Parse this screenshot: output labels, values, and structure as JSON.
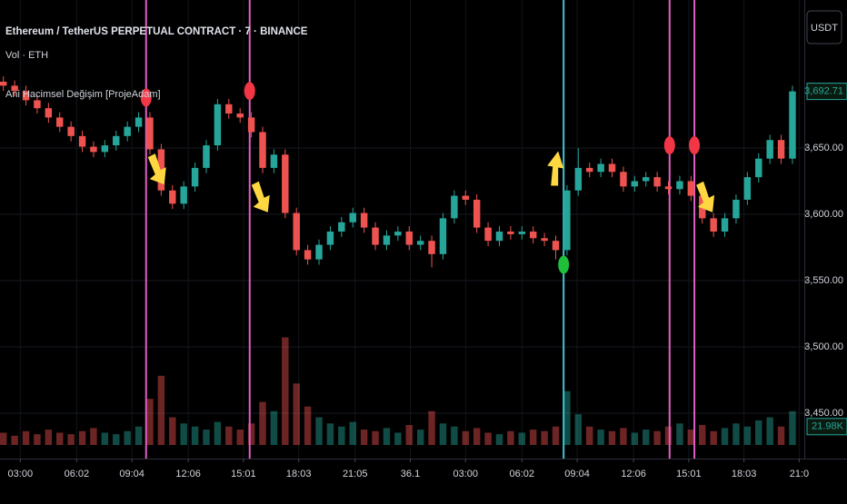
{
  "chart_data": {
    "type": "candlestick",
    "title": "Ethereum / TetherUS PERPETUAL CONTRACT · 7 · BINANCE",
    "legend_lines": [
      "Vol · ETH",
      "Ani Hacimsel Değişim [ProjeAdam]"
    ],
    "currency_button": "USDT",
    "up_color": "#26a69a",
    "down_color": "#ef5350",
    "grid": true,
    "xlim": [
      -0.3,
      71.05
    ],
    "xticks": [
      {
        "value": 1.5,
        "label": "03:00"
      },
      {
        "value": 6.5,
        "label": "06:02"
      },
      {
        "value": 11.4,
        "label": "09:04"
      },
      {
        "value": 16.4,
        "label": "12:06"
      },
      {
        "value": 21.3,
        "label": "15:01"
      },
      {
        "value": 26.2,
        "label": "18:03"
      },
      {
        "value": 31.2,
        "label": "21:05"
      },
      36.1,
      {
        "value": 41.0,
        "label": "03:00"
      },
      {
        "value": 46.0,
        "label": "06:02"
      },
      {
        "value": 50.9,
        "label": "09:04"
      },
      {
        "value": 55.9,
        "label": "12:06"
      },
      {
        "value": 60.8,
        "label": "15:01"
      },
      {
        "value": 65.7,
        "label": "18:03"
      },
      {
        "value": 70.6,
        "label": "21:0"
      }
    ],
    "ylim": [
      3415.8,
      3761.6
    ],
    "yticks": [
      {
        "value": 3450,
        "label": "3,450.00"
      },
      {
        "value": 3500,
        "label": "3,500.00"
      },
      {
        "value": 3550,
        "label": "3,550.00"
      },
      {
        "value": 3600,
        "label": "3,600.00"
      },
      {
        "value": 3650,
        "label": "3,650.00"
      }
    ],
    "open": [
      3700,
      3697,
      3693,
      3686,
      3680,
      3673,
      3666,
      3659,
      3651,
      3647,
      3652,
      3659,
      3666,
      3673,
      3649,
      3618,
      3608,
      3621,
      3635,
      3652,
      3683,
      3676,
      3673,
      3662,
      3635,
      3645,
      3601,
      3573,
      3566,
      3577,
      3587,
      3594,
      3601,
      3590,
      3577,
      3584,
      3587,
      3577,
      3580,
      3570,
      3597,
      3614,
      3611,
      3590,
      3580,
      3587,
      3585,
      3587,
      3582,
      3580,
      3573,
      3618,
      3635,
      3632,
      3638,
      3632,
      3621,
      3625,
      3628,
      3621,
      3619,
      3625,
      3614,
      3597,
      3587,
      3597,
      3611,
      3628,
      3642,
      3656,
      3642
    ],
    "high": [
      3704,
      3701,
      3697,
      3690,
      3684,
      3677,
      3670,
      3663,
      3655,
      3656,
      3663,
      3670,
      3677,
      3677,
      3653,
      3622,
      3625,
      3639,
      3656,
      3687,
      3687,
      3680,
      3677,
      3666,
      3649,
      3649,
      3605,
      3577,
      3581,
      3591,
      3598,
      3605,
      3605,
      3594,
      3588,
      3591,
      3591,
      3584,
      3584,
      3601,
      3618,
      3618,
      3615,
      3594,
      3591,
      3591,
      3591,
      3591,
      3586,
      3584,
      3622,
      3650,
      3639,
      3642,
      3642,
      3636,
      3629,
      3632,
      3632,
      3625,
      3629,
      3629,
      3618,
      3601,
      3601,
      3615,
      3632,
      3646,
      3660,
      3660,
      3697
    ],
    "low": [
      3693,
      3689,
      3682,
      3676,
      3669,
      3662,
      3655,
      3647,
      3643,
      3643,
      3648,
      3655,
      3662,
      3645,
      3614,
      3604,
      3604,
      3617,
      3631,
      3648,
      3672,
      3669,
      3658,
      3631,
      3631,
      3597,
      3569,
      3562,
      3562,
      3573,
      3583,
      3590,
      3586,
      3573,
      3573,
      3580,
      3573,
      3573,
      3560,
      3566,
      3593,
      3607,
      3586,
      3576,
      3576,
      3581,
      3581,
      3578,
      3576,
      3566,
      3569,
      3614,
      3628,
      3628,
      3628,
      3617,
      3617,
      3621,
      3617,
      3615,
      3615,
      3610,
      3593,
      3583,
      3583,
      3593,
      3607,
      3624,
      3638,
      3638,
      3638
    ],
    "close": [
      3697,
      3693,
      3686,
      3680,
      3673,
      3666,
      3659,
      3651,
      3647,
      3652,
      3659,
      3666,
      3673,
      3649,
      3618,
      3608,
      3621,
      3635,
      3652,
      3683,
      3676,
      3673,
      3662,
      3635,
      3645,
      3601,
      3573,
      3566,
      3577,
      3587,
      3594,
      3601,
      3590,
      3577,
      3584,
      3587,
      3577,
      3580,
      3570,
      3597,
      3614,
      3611,
      3590,
      3580,
      3587,
      3585,
      3587,
      3582,
      3580,
      3573,
      3618,
      3635,
      3632,
      3638,
      3632,
      3621,
      3625,
      3628,
      3621,
      3619,
      3625,
      3614,
      3597,
      3587,
      3597,
      3611,
      3628,
      3642,
      3656,
      3642,
      3692.71
    ],
    "last_price": {
      "value": 3692.71,
      "label": "3,692.71"
    },
    "volume": [
      8,
      6,
      9,
      7,
      10,
      8,
      7,
      9,
      11,
      8,
      7,
      9,
      12,
      30,
      45,
      18,
      14,
      12,
      10,
      15,
      12,
      10,
      14,
      28,
      22,
      70,
      40,
      25,
      18,
      14,
      12,
      15,
      10,
      9,
      11,
      8,
      13,
      10,
      22,
      14,
      12,
      9,
      11,
      8,
      7,
      9,
      8,
      10,
      9,
      12,
      35,
      20,
      12,
      10,
      9,
      11,
      8,
      10,
      9,
      12,
      14,
      10,
      13,
      9,
      11,
      14,
      12,
      16,
      18,
      12,
      21.98
    ],
    "volume_ylim": [
      0,
      75
    ],
    "last_volume": {
      "value": 21.98,
      "label": "21.98K"
    },
    "signals": [
      {
        "x": 12.66,
        "line_color": "#e05fc4",
        "dot_color": "#f23645",
        "dot_price": 3688,
        "arrow": "down",
        "arrow_price": 3628
      },
      {
        "x": 21.85,
        "line_color": "#e05fc4",
        "dot_color": "#f23645",
        "dot_price": 3693,
        "arrow": "down",
        "arrow_price": 3607
      },
      {
        "x": 49.7,
        "line_color": "#3fc6d6",
        "dot_color": "#1fbf3a",
        "dot_price": 3562,
        "arrow": "up",
        "arrow_price": 3638
      },
      {
        "x": 59.1,
        "line_color": "#e05fc4",
        "dot_color": "#f23645",
        "dot_price": 3652
      },
      {
        "x": 61.3,
        "line_color": "#e05fc4",
        "dot_color": "#f23645",
        "dot_price": 3652,
        "arrow": "down",
        "arrow_price": 3607
      }
    ],
    "arrow_color": "#ffd740"
  }
}
